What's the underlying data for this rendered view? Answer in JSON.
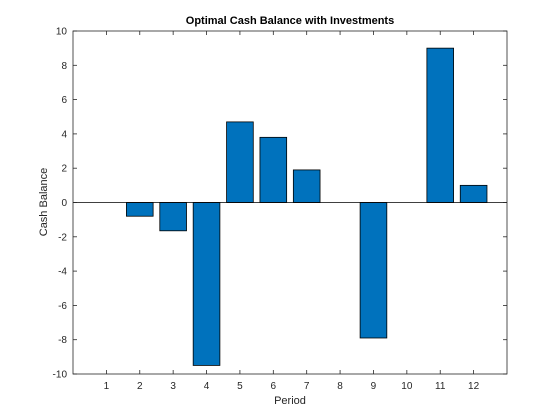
{
  "chart_data": {
    "type": "bar",
    "title": "Optimal Cash Balance with Investments",
    "xlabel": "Period",
    "ylabel": "Cash Balance",
    "categories": [
      "1",
      "2",
      "3",
      "4",
      "5",
      "6",
      "7",
      "8",
      "9",
      "10",
      "11",
      "12"
    ],
    "values": [
      0,
      -0.8,
      -1.65,
      -9.5,
      4.7,
      3.8,
      1.9,
      0,
      -7.9,
      0,
      9,
      1
    ],
    "xlim": [
      0,
      13
    ],
    "ylim": [
      -10,
      10
    ],
    "yticks": [
      -10,
      -8,
      -6,
      -4,
      -2,
      0,
      2,
      4,
      6,
      8,
      10
    ],
    "ytick_labels": [
      "-10",
      "-8",
      "-6",
      "-4",
      "-2",
      "0",
      "2",
      "4",
      "6",
      "8",
      "10"
    ],
    "grid": false,
    "bar_color": "#0072BD",
    "edge_color": "#000000"
  }
}
